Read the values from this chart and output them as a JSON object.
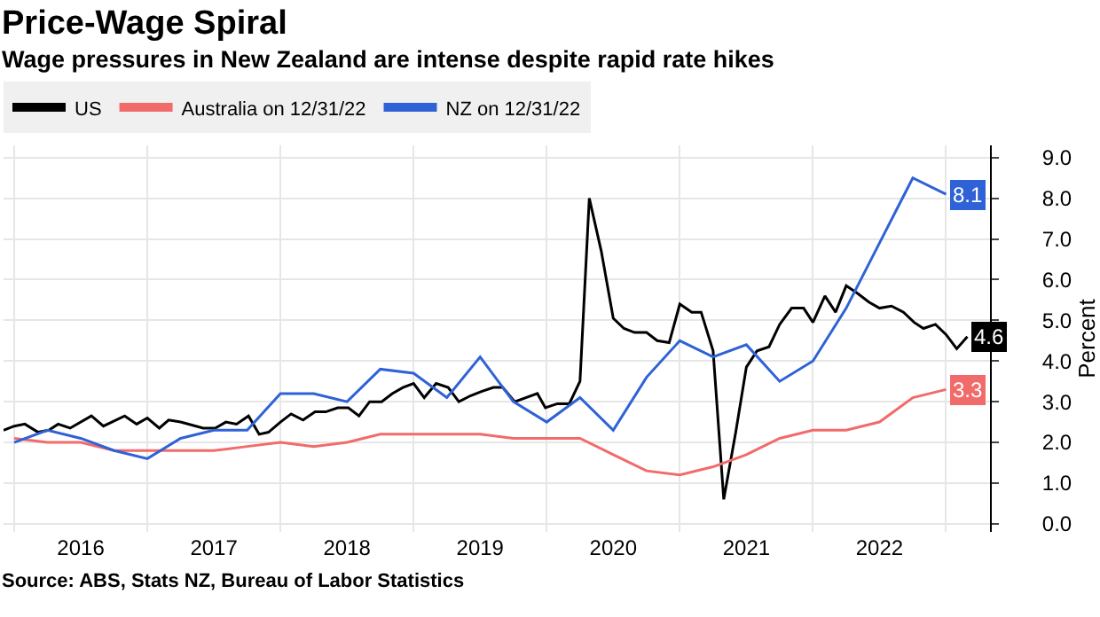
{
  "chart_data": {
    "type": "line",
    "title": "Price-Wage Spiral",
    "subtitle": "Wage pressures in New Zealand are intense despite rapid rate hikes",
    "ylabel": "Percent",
    "annotations": [
      "Source: ABS, Stats NZ, Bureau of Labor Statistics"
    ],
    "xlim": [
      2015.92,
      2023.33
    ],
    "xticks": [
      {
        "value": 2016,
        "label": null
      },
      {
        "value": 2016.5,
        "label": "2016"
      },
      {
        "value": 2017,
        "label": null
      },
      {
        "value": 2017.5,
        "label": "2017"
      },
      {
        "value": 2018,
        "label": null
      },
      {
        "value": 2018.5,
        "label": "2018"
      },
      {
        "value": 2019,
        "label": null
      },
      {
        "value": 2019.5,
        "label": "2019"
      },
      {
        "value": 2020,
        "label": null
      },
      {
        "value": 2020.5,
        "label": "2020"
      },
      {
        "value": 2021,
        "label": null
      },
      {
        "value": 2021.5,
        "label": "2021"
      },
      {
        "value": 2022,
        "label": null
      },
      {
        "value": 2022.5,
        "label": "2022"
      },
      {
        "value": 2023,
        "label": null
      }
    ],
    "ylim": [
      -0.2,
      9.3
    ],
    "yticks": [
      {
        "value": 0,
        "label": "0.0"
      },
      {
        "value": 1,
        "label": "1.0"
      },
      {
        "value": 2,
        "label": "2.0"
      },
      {
        "value": 3,
        "label": "3.0"
      },
      {
        "value": 4,
        "label": "4.0"
      },
      {
        "value": 5,
        "label": "5.0"
      },
      {
        "value": 6,
        "label": "6.0"
      },
      {
        "value": 7,
        "label": "7.0"
      },
      {
        "value": 8,
        "label": "8.0"
      },
      {
        "value": 9,
        "label": "9.0"
      }
    ],
    "grid": true,
    "legend": "top left",
    "marker": "none",
    "line_style": "solid",
    "series": [
      {
        "name": "US",
        "color": "#000000",
        "x": [
          2015.92,
          2016.0,
          2016.08,
          2016.18,
          2016.26,
          2016.33,
          2016.42,
          2016.58,
          2016.67,
          2016.83,
          2016.92,
          2017.0,
          2017.09,
          2017.16,
          2017.25,
          2017.42,
          2017.51,
          2017.59,
          2017.67,
          2017.76,
          2017.84,
          2017.91,
          2018.0,
          2018.08,
          2018.17,
          2018.26,
          2018.34,
          2018.43,
          2018.51,
          2018.59,
          2018.67,
          2018.76,
          2018.84,
          2018.92,
          2019.0,
          2019.08,
          2019.17,
          2019.26,
          2019.34,
          2019.43,
          2019.51,
          2019.6,
          2019.67,
          2019.76,
          2019.93,
          2019.99,
          2020.08,
          2020.17,
          2020.25,
          2020.32,
          2020.41,
          2020.5,
          2020.58,
          2020.66,
          2020.75,
          2020.83,
          2020.92,
          2021.0,
          2021.09,
          2021.16,
          2021.25,
          2021.33,
          2021.42,
          2021.5,
          2021.58,
          2021.67,
          2021.75,
          2021.84,
          2021.93,
          2022.0,
          2022.09,
          2022.17,
          2022.25,
          2022.34,
          2022.42,
          2022.5,
          2022.59,
          2022.68,
          2022.76,
          2022.83,
          2022.92,
          2023.0,
          2023.08,
          2023.16
        ],
        "values": [
          2.3,
          2.4,
          2.45,
          2.25,
          2.3,
          2.45,
          2.35,
          2.65,
          2.4,
          2.65,
          2.45,
          2.6,
          2.35,
          2.55,
          2.5,
          2.35,
          2.35,
          2.5,
          2.45,
          2.65,
          2.2,
          2.25,
          2.5,
          2.7,
          2.55,
          2.75,
          2.75,
          2.85,
          2.85,
          2.65,
          3.0,
          3.0,
          3.2,
          3.35,
          3.45,
          3.1,
          3.45,
          3.35,
          3.0,
          3.15,
          3.25,
          3.35,
          3.35,
          3.0,
          3.2,
          2.85,
          2.95,
          2.95,
          3.5,
          8.0,
          6.7,
          5.05,
          4.8,
          4.7,
          4.7,
          4.5,
          4.45,
          5.4,
          5.2,
          5.2,
          4.25,
          0.6,
          2.25,
          3.85,
          4.25,
          4.35,
          4.9,
          5.3,
          5.3,
          4.95,
          5.6,
          5.2,
          5.85,
          5.65,
          5.45,
          5.3,
          5.35,
          5.2,
          4.95,
          4.8,
          4.9,
          4.65,
          4.3,
          4.6
        ],
        "value_labels": [
          null,
          null,
          null,
          null,
          null,
          null,
          null,
          null,
          null,
          null,
          null,
          null,
          null,
          null,
          null,
          null,
          null,
          null,
          null,
          null,
          null,
          null,
          null,
          null,
          null,
          null,
          null,
          null,
          null,
          null,
          null,
          null,
          null,
          null,
          null,
          null,
          null,
          null,
          null,
          null,
          null,
          null,
          null,
          null,
          null,
          null,
          null,
          null,
          null,
          null,
          null,
          null,
          null,
          null,
          null,
          null,
          null,
          null,
          null,
          null,
          null,
          null,
          null,
          null,
          null,
          null,
          null,
          null,
          null,
          null,
          null,
          null,
          null,
          null,
          null,
          null,
          null,
          null,
          null,
          null,
          null,
          null,
          null,
          "4.6"
        ]
      },
      {
        "name": "Australia on 12/31/22",
        "color": "#f26b6b",
        "x": [
          2016,
          2016.25,
          2016.5,
          2016.75,
          2017,
          2017.25,
          2017.5,
          2017.75,
          2018,
          2018.25,
          2018.5,
          2018.75,
          2019,
          2019.25,
          2019.5,
          2019.75,
          2020,
          2020.25,
          2020.5,
          2020.75,
          2021,
          2021.25,
          2021.5,
          2021.75,
          2022,
          2022.25,
          2022.5,
          2022.75,
          2023
        ],
        "values": [
          2.1,
          2.0,
          2.0,
          1.8,
          1.8,
          1.8,
          1.8,
          1.9,
          2.0,
          1.9,
          2.0,
          2.2,
          2.2,
          2.2,
          2.2,
          2.1,
          2.1,
          2.1,
          1.7,
          1.3,
          1.2,
          1.4,
          1.7,
          2.1,
          2.3,
          2.3,
          2.5,
          3.1,
          3.3
        ],
        "value_labels": [
          null,
          null,
          null,
          null,
          null,
          null,
          null,
          null,
          null,
          null,
          null,
          null,
          null,
          null,
          null,
          null,
          null,
          null,
          null,
          null,
          null,
          null,
          null,
          null,
          null,
          null,
          null,
          null,
          "3.3"
        ]
      },
      {
        "name": "NZ on 12/31/22",
        "color": "#2f62d6",
        "x": [
          2016,
          2016.25,
          2016.5,
          2016.75,
          2017,
          2017.25,
          2017.5,
          2017.75,
          2018,
          2018.25,
          2018.5,
          2018.75,
          2019,
          2019.25,
          2019.5,
          2019.75,
          2020,
          2020.25,
          2020.5,
          2020.75,
          2021,
          2021.25,
          2021.5,
          2021.75,
          2022,
          2022.25,
          2022.5,
          2022.75,
          2023
        ],
        "values": [
          2.0,
          2.3,
          2.1,
          1.8,
          1.6,
          2.1,
          2.3,
          2.3,
          3.2,
          3.2,
          3.0,
          3.8,
          3.7,
          3.1,
          4.1,
          3.0,
          2.5,
          3.1,
          2.3,
          3.6,
          4.5,
          4.1,
          4.4,
          3.5,
          4.0,
          5.3,
          6.9,
          8.5,
          8.1
        ],
        "value_labels": [
          null,
          null,
          null,
          null,
          null,
          null,
          null,
          null,
          null,
          null,
          null,
          null,
          null,
          null,
          null,
          null,
          null,
          null,
          null,
          null,
          null,
          null,
          null,
          null,
          null,
          null,
          null,
          null,
          "8.1"
        ]
      }
    ]
  }
}
